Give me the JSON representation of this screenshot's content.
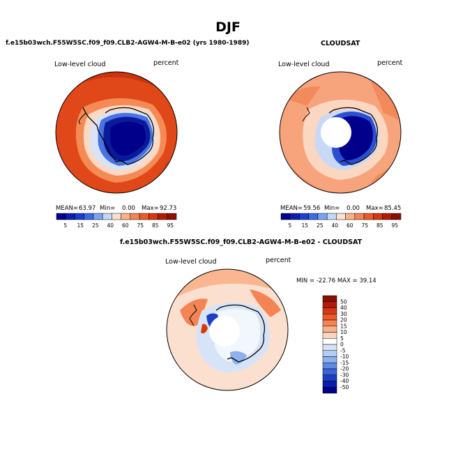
{
  "main_title": "DJF",
  "panels": [
    {
      "header": "f.e15b03wch.F55W5SC.f09_f09.CLB2-AGW4-M-B-e02 (yrs 1980-1989)",
      "variable_label": "Low-level cloud",
      "units": "percent",
      "stats": {
        "mean_label": "MEAN=",
        "mean": "63.97",
        "min_label": "Min=",
        "min": "0.00",
        "max_label": "Max=",
        "max": "92.73"
      },
      "colorbar": {
        "colors": [
          "#00008b",
          "#0a1fae",
          "#1a3fcf",
          "#3a6ae6",
          "#7aa3f2",
          "#c4d8f7",
          "#fbe1cf",
          "#f9b18a",
          "#f58455",
          "#ea5a2b",
          "#d8370f",
          "#b21c05",
          "#8a0f02"
        ],
        "labels": [
          "5",
          "15",
          "25",
          "40",
          "60",
          "75",
          "85",
          "95"
        ]
      }
    },
    {
      "header": "CLOUDSAT",
      "variable_label": "Low-level cloud",
      "units": "percent",
      "stats": {
        "mean_label": "MEAN=",
        "mean": "59.56",
        "min_label": "Min=",
        "min": "0.00",
        "max_label": "Max=",
        "max": "85.45"
      },
      "colorbar": {
        "colors": [
          "#00008b",
          "#0a1fae",
          "#1a3fcf",
          "#3a6ae6",
          "#7aa3f2",
          "#c4d8f7",
          "#fbe1cf",
          "#f9b18a",
          "#f58455",
          "#ea5a2b",
          "#d8370f",
          "#b21c05",
          "#8a0f02"
        ],
        "labels": [
          "5",
          "15",
          "25",
          "40",
          "60",
          "75",
          "85",
          "95"
        ]
      }
    },
    {
      "header": "f.e15b03wch.F55W5SC.f09_f09.CLB2-AGW4-M-B-e02 - CLOUDSAT",
      "variable_label": "Low-level cloud",
      "units": "percent",
      "minmax_text": "MIN = -22.76 MAX =  39.14",
      "colorbar": {
        "colors": [
          "#8a0f02",
          "#b21c05",
          "#d8370f",
          "#ea5a2b",
          "#f58455",
          "#f9b18a",
          "#fbd4bd",
          "#ffffff",
          "#d7e4f7",
          "#b4cdf2",
          "#8eb0ec",
          "#5f8ae3",
          "#3a64d8",
          "#1c3fc4",
          "#0a1fae",
          "#00008b"
        ],
        "labels": [
          "50",
          "40",
          "30",
          "20",
          "15",
          "10",
          "5",
          "0",
          "-5",
          "-10",
          "-15",
          "-20",
          "-30",
          "-40",
          "-50"
        ]
      }
    }
  ]
}
